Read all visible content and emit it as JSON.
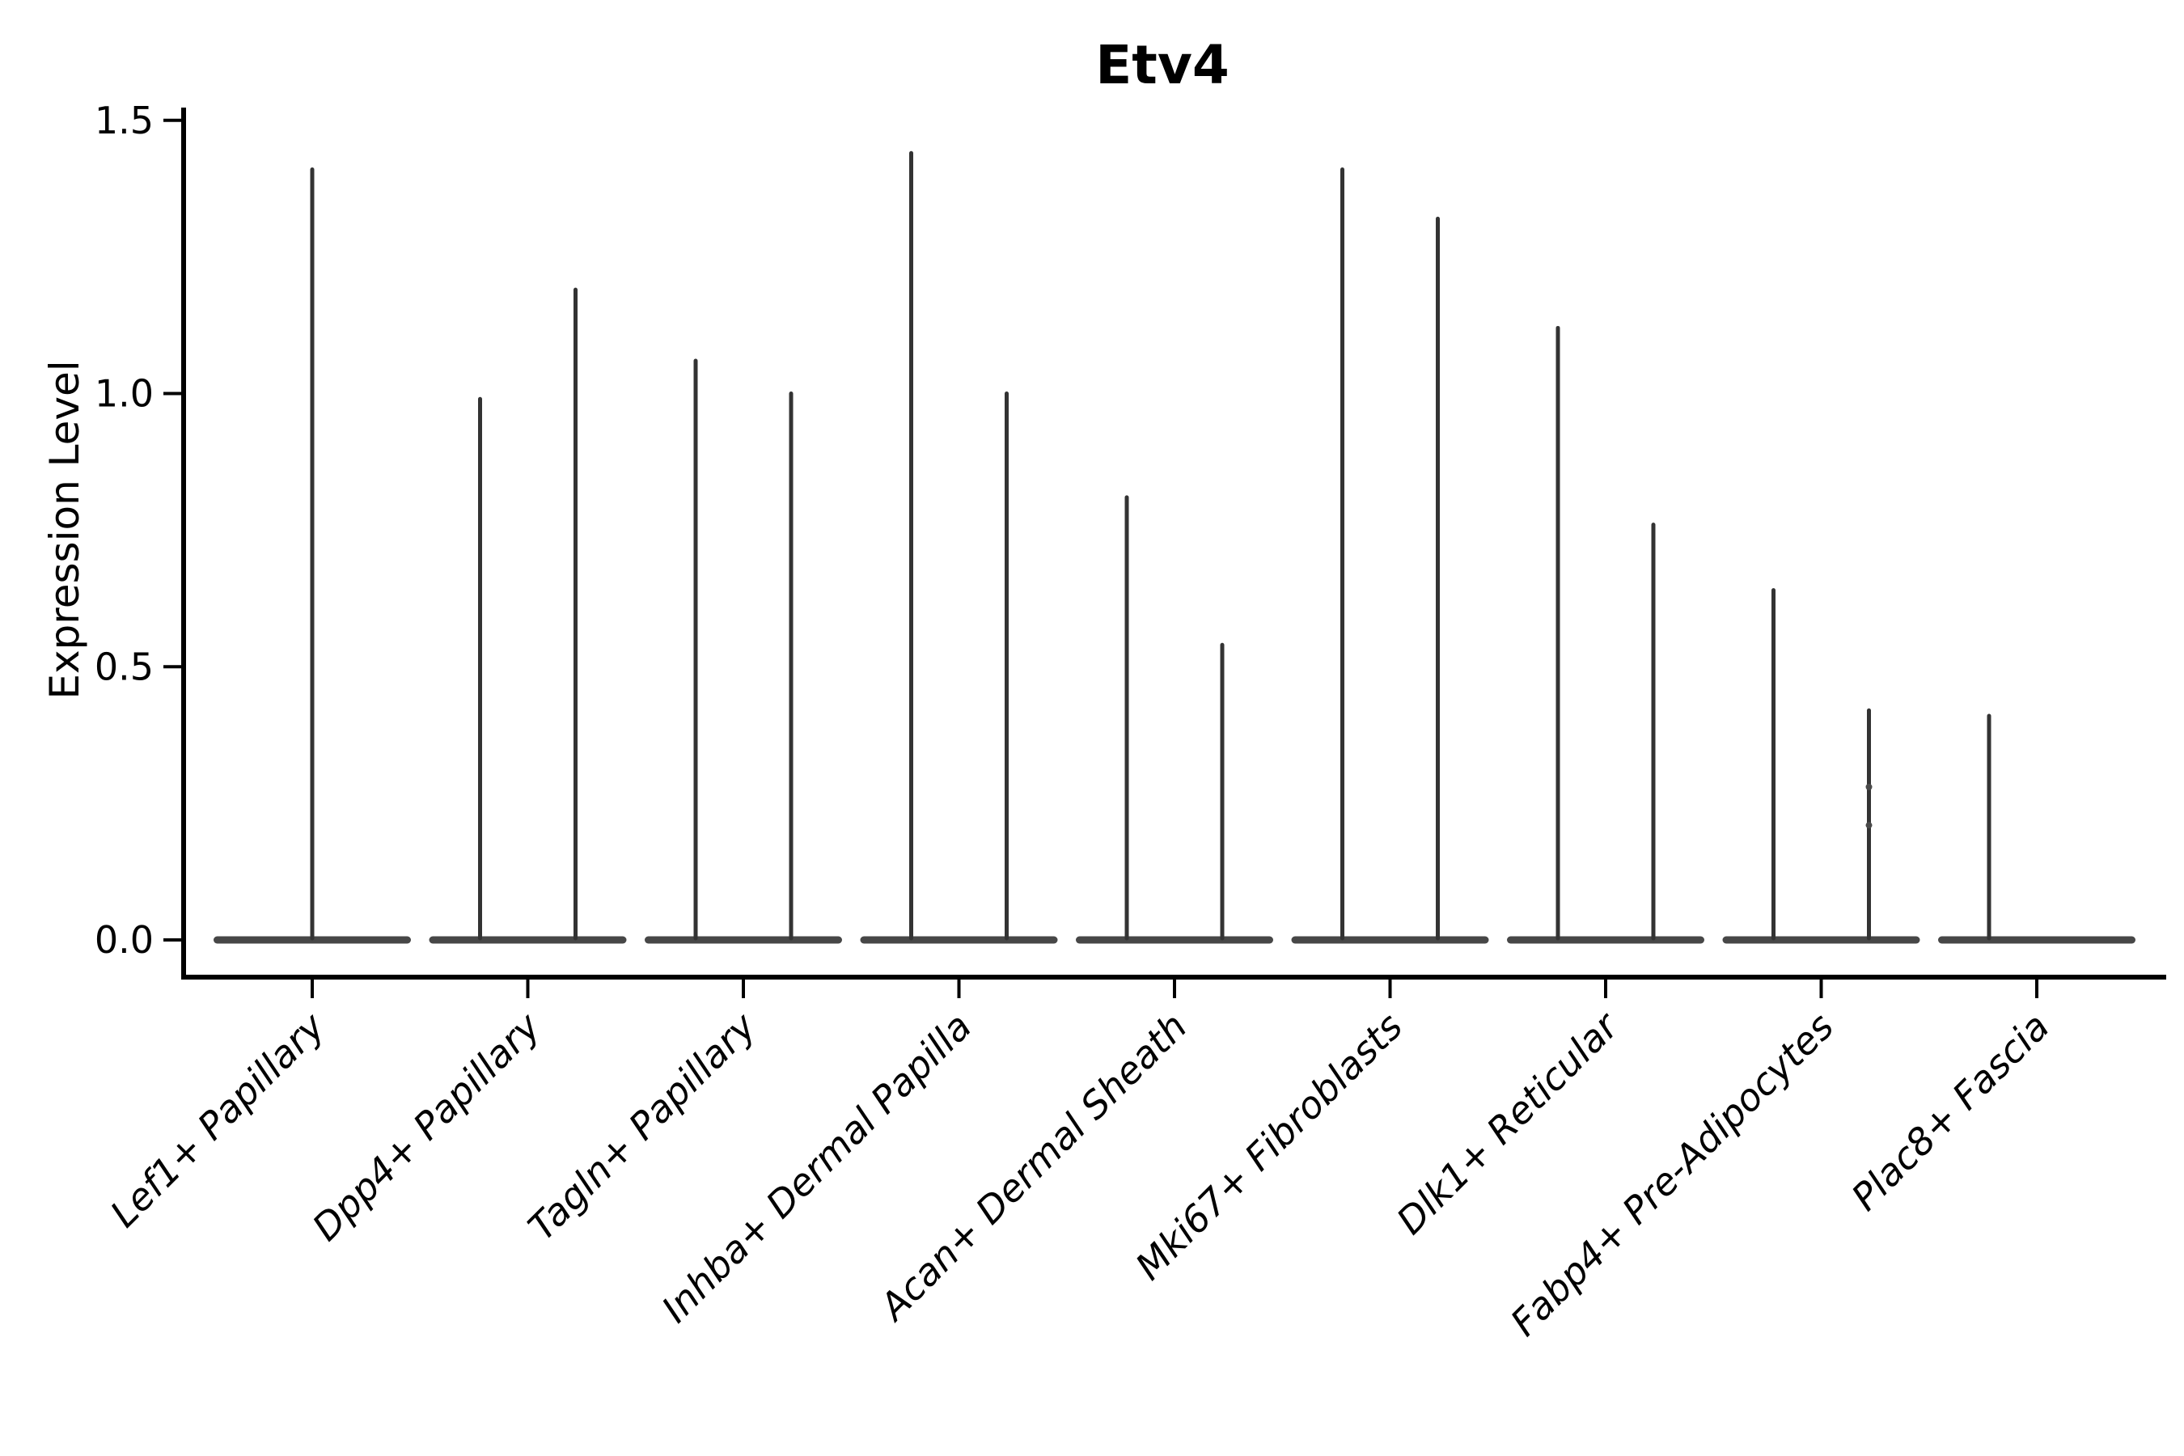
{
  "chart_data": {
    "type": "violin",
    "title": "Etv4",
    "xlabel": "",
    "ylabel": "Expression Level",
    "ylim": [
      -0.07,
      1.52
    ],
    "ytick_values": [
      0.0,
      0.5,
      1.0,
      1.5
    ],
    "ytick_labels": [
      "0.0",
      "0.5",
      "1.0",
      "1.5"
    ],
    "grid": false,
    "legend": null,
    "baseline_value": 0.0,
    "categories": [
      "Lef1+ Papillary",
      "Dpp4+ Papillary",
      "Tagln+ Papillary",
      "Inhba+ Dermal Papilla",
      "Acan+ Dermal Sheath",
      "Mki67+ Fibroblasts",
      "Dlk1+ Reticular",
      "Fabp4+ Pre-Adipocytes",
      "Plac8+ Fascia"
    ],
    "groups": [
      {
        "category": "Lef1+ Papillary",
        "violins": [
          {
            "position": "center",
            "max": 1.41
          }
        ]
      },
      {
        "category": "Dpp4+ Papillary",
        "violins": [
          {
            "position": "left",
            "max": 0.99
          },
          {
            "position": "right",
            "max": 1.19
          }
        ]
      },
      {
        "category": "Tagln+ Papillary",
        "violins": [
          {
            "position": "left",
            "max": 1.06
          },
          {
            "position": "right",
            "max": 1.0
          }
        ]
      },
      {
        "category": "Inhba+ Dermal Papilla",
        "violins": [
          {
            "position": "left",
            "max": 1.44
          },
          {
            "position": "right",
            "max": 1.0
          }
        ]
      },
      {
        "category": "Acan+ Dermal Sheath",
        "violins": [
          {
            "position": "left",
            "max": 0.81
          },
          {
            "position": "right",
            "max": 0.54
          }
        ]
      },
      {
        "category": "Mki67+ Fibroblasts",
        "violins": [
          {
            "position": "left",
            "max": 1.41
          },
          {
            "position": "right",
            "max": 1.32
          }
        ]
      },
      {
        "category": "Dlk1+ Reticular",
        "violins": [
          {
            "position": "left",
            "max": 1.12
          },
          {
            "position": "right",
            "max": 0.76
          }
        ]
      },
      {
        "category": "Fabp4+ Pre-Adipocytes",
        "violins": [
          {
            "position": "left",
            "max": 0.64
          },
          {
            "position": "right",
            "max": 0.42,
            "dots": [
              0.28,
              0.21
            ]
          }
        ]
      },
      {
        "category": "Plac8+ Fascia",
        "violins": [
          {
            "position": "left",
            "max": 0.41
          }
        ]
      }
    ]
  },
  "style": {
    "background": "#ffffff",
    "text_color": "#000000",
    "axis_color": "#000000",
    "spike_color": "#333333",
    "base_color": "#474747"
  }
}
